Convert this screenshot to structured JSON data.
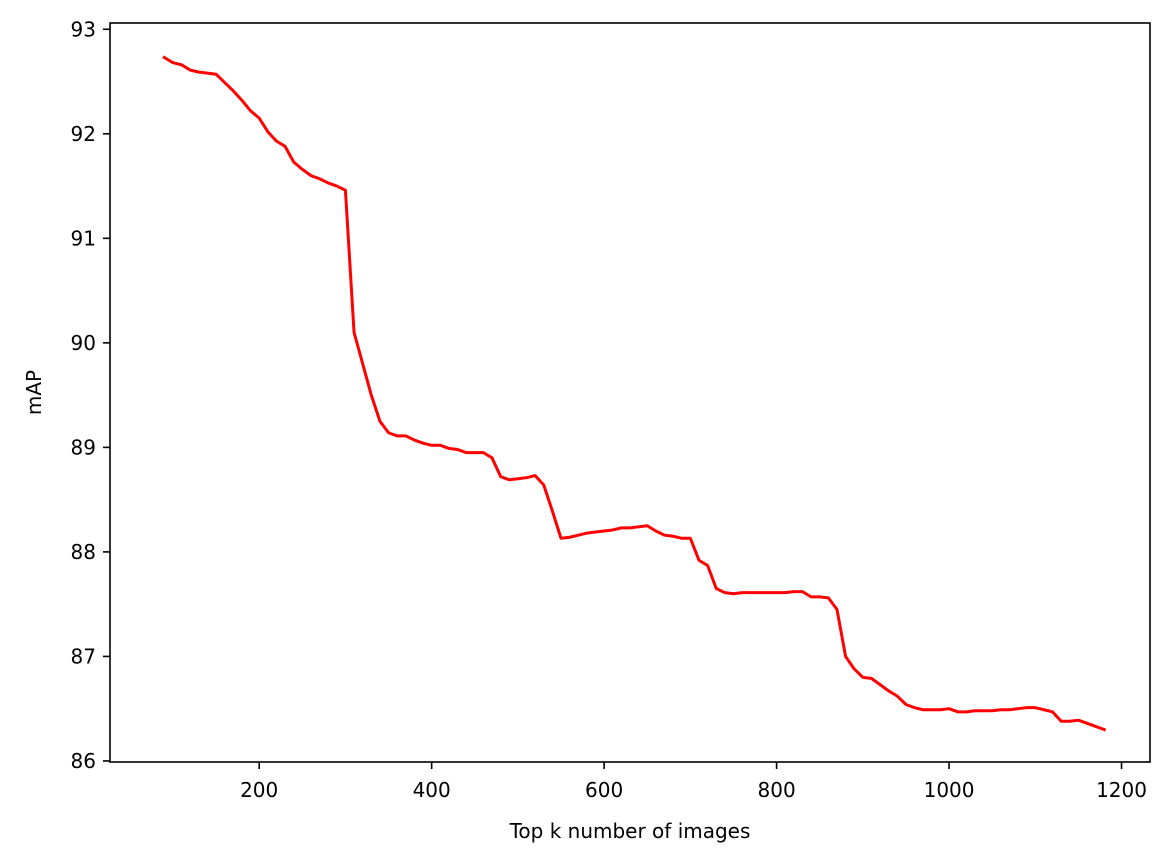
{
  "chart_data": {
    "type": "line",
    "title": "",
    "xlabel": "Top k number of images",
    "ylabel": "mAP",
    "xlim": [
      27,
      1233
    ],
    "ylim": [
      85.99,
      93.06
    ],
    "xticks": [
      200,
      400,
      600,
      800,
      1000,
      1200
    ],
    "yticks": [
      86,
      87,
      88,
      89,
      90,
      91,
      92,
      93
    ],
    "grid": false,
    "legend": "none",
    "series": [
      {
        "color": "#ff0000",
        "x": [
          90,
          100,
          110,
          120,
          130,
          140,
          150,
          160,
          170,
          180,
          190,
          200,
          210,
          220,
          230,
          240,
          250,
          260,
          270,
          280,
          290,
          300,
          310,
          320,
          330,
          340,
          350,
          360,
          370,
          380,
          390,
          400,
          410,
          420,
          430,
          440,
          450,
          460,
          470,
          480,
          490,
          500,
          510,
          520,
          530,
          540,
          550,
          560,
          570,
          580,
          590,
          600,
          610,
          620,
          630,
          640,
          650,
          660,
          670,
          680,
          690,
          700,
          710,
          720,
          730,
          740,
          750,
          760,
          770,
          780,
          790,
          800,
          810,
          820,
          830,
          840,
          850,
          860,
          870,
          880,
          890,
          900,
          910,
          920,
          930,
          940,
          950,
          960,
          970,
          980,
          990,
          1000,
          1010,
          1020,
          1030,
          1040,
          1050,
          1060,
          1070,
          1080,
          1090,
          1100,
          1110,
          1120,
          1130,
          1140,
          1150,
          1160,
          1170,
          1180
        ],
        "y": [
          92.73,
          92.68,
          92.66,
          92.61,
          92.59,
          92.58,
          92.57,
          92.49,
          92.41,
          92.32,
          92.22,
          92.15,
          92.02,
          91.93,
          91.88,
          91.73,
          91.66,
          91.6,
          91.57,
          91.53,
          91.5,
          91.46,
          90.1,
          89.8,
          89.5,
          89.25,
          89.14,
          89.11,
          89.11,
          89.07,
          89.04,
          89.02,
          89.02,
          88.99,
          88.98,
          88.95,
          88.95,
          88.95,
          88.9,
          88.72,
          88.69,
          88.7,
          88.71,
          88.73,
          88.64,
          88.39,
          88.13,
          88.14,
          88.16,
          88.18,
          88.19,
          88.2,
          88.21,
          88.23,
          88.23,
          88.24,
          88.25,
          88.2,
          88.16,
          88.15,
          88.13,
          88.13,
          87.92,
          87.87,
          87.65,
          87.61,
          87.6,
          87.61,
          87.61,
          87.61,
          87.61,
          87.61,
          87.61,
          87.62,
          87.62,
          87.57,
          87.57,
          87.56,
          87.45,
          87.0,
          86.88,
          86.8,
          86.79,
          86.73,
          86.67,
          86.62,
          86.54,
          86.51,
          86.49,
          86.49,
          86.49,
          86.5,
          86.47,
          86.47,
          86.48,
          86.48,
          86.48,
          86.49,
          86.49,
          86.5,
          86.51,
          86.51,
          86.49,
          86.47,
          86.38,
          86.38,
          86.39,
          86.36,
          86.33,
          86.3
        ]
      }
    ]
  }
}
